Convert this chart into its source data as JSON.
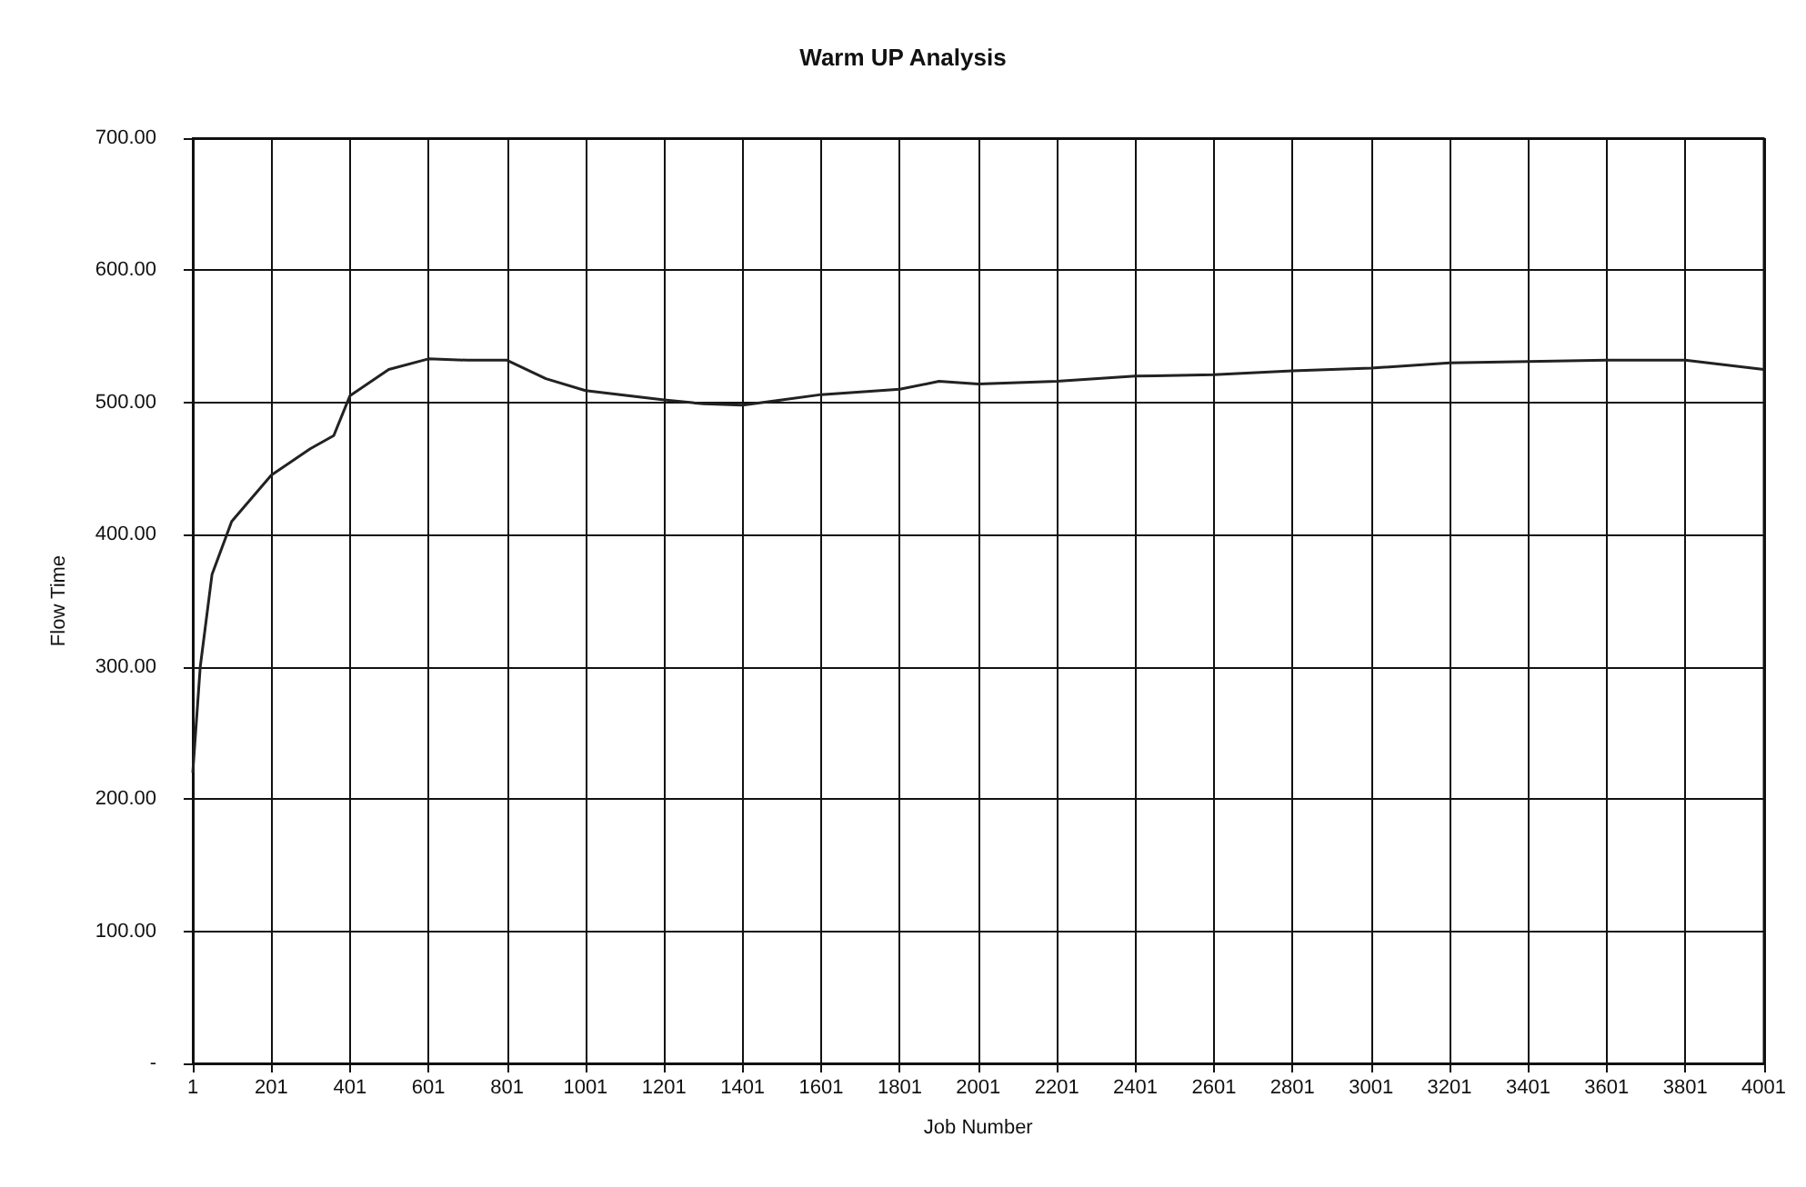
{
  "chart_data": {
    "type": "line",
    "title": "Warm UP Analysis",
    "xlabel": "Job Number",
    "ylabel": "Flow Time",
    "xlim": [
      1,
      4001
    ],
    "xticks": [
      1,
      201,
      401,
      601,
      801,
      1001,
      1201,
      1401,
      1601,
      1801,
      2001,
      2201,
      2401,
      2601,
      2801,
      3001,
      3201,
      3401,
      3601,
      3801,
      4001
    ],
    "ylim": [
      0,
      700
    ],
    "yticks": [
      {
        "value": 0,
        "label": "-"
      },
      {
        "value": 100,
        "label": "100.00"
      },
      {
        "value": 200,
        "label": "200.00"
      },
      {
        "value": 300,
        "label": "300.00"
      },
      {
        "value": 400,
        "label": "400.00"
      },
      {
        "value": 500,
        "label": "500.00"
      },
      {
        "value": 600,
        "label": "600.00"
      },
      {
        "value": 700,
        "label": "700.00"
      }
    ],
    "grid": true,
    "marker": "none",
    "line_style": "solid",
    "series": [
      {
        "color": "#222222",
        "x": [
          1,
          20,
          50,
          100,
          201,
          300,
          360,
          401,
          500,
          601,
          700,
          801,
          900,
          1001,
          1201,
          1301,
          1401,
          1501,
          1601,
          1801,
          1901,
          2001,
          2201,
          2401,
          2601,
          2801,
          3001,
          3201,
          3401,
          3601,
          3801,
          4001
        ],
        "values": [
          220,
          300,
          370,
          410,
          445,
          465,
          475,
          505,
          525,
          533,
          532,
          532,
          518,
          509,
          502,
          499,
          498,
          502,
          506,
          510,
          516,
          514,
          516,
          520,
          521,
          524,
          526,
          530,
          531,
          532,
          532,
          525
        ]
      }
    ]
  }
}
